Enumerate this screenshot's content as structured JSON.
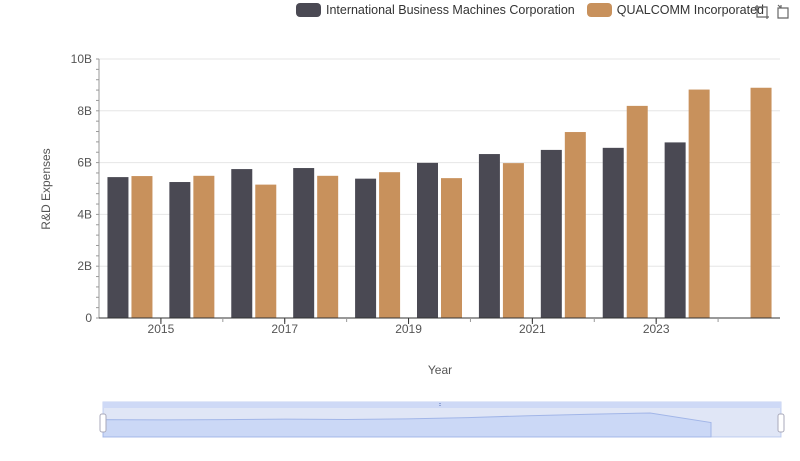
{
  "chart_data": {
    "type": "bar",
    "xlabel": "Year",
    "ylabel": "R&D Expenses",
    "ylim": [
      0,
      10
    ],
    "y_tick_labels": [
      "0",
      "2B",
      "4B",
      "6B",
      "8B",
      "10B"
    ],
    "categories": [
      "2014",
      "2015",
      "2016",
      "2017",
      "2018",
      "2019",
      "2020",
      "2021",
      "2022",
      "2023",
      "2024"
    ],
    "x_tick_labels": [
      "2015",
      "2017",
      "2019",
      "2021",
      "2023"
    ],
    "series": [
      {
        "name": "International Business Machines Corporation",
        "color": "#4a4953",
        "values": [
          5.44,
          5.25,
          5.75,
          5.79,
          5.38,
          5.99,
          6.33,
          6.49,
          6.57,
          6.78,
          null
        ]
      },
      {
        "name": "QUALCOMM Incorporated",
        "color": "#c8915c",
        "values": [
          5.48,
          5.49,
          5.15,
          5.49,
          5.63,
          5.4,
          5.98,
          7.18,
          8.19,
          8.82,
          8.89
        ]
      }
    ],
    "legend_position": "top-right",
    "grid": true,
    "has_zoom_slider": true
  },
  "colors": {
    "axis": "#333333",
    "grid": "#e6e6e6",
    "slider_fill": "#dbe4fb",
    "slider_border": "#c6d2f0"
  }
}
